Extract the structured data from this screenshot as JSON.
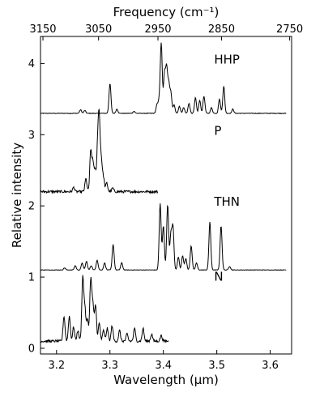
{
  "chart_data": {
    "type": "line",
    "xlabel": "Wavelength (μm)",
    "ylabel": "Relative intensity",
    "top_axis_label": "Frequency (cm⁻¹)",
    "xlim": [
      3.17,
      3.64
    ],
    "ylim": [
      -0.08,
      4.38
    ],
    "x_ticks": [
      3.2,
      3.3,
      3.4,
      3.5,
      3.6
    ],
    "x_tick_labels": [
      "3.2",
      "3.3",
      "3.4",
      "3.5",
      "3.6"
    ],
    "y_ticks": [
      0,
      1,
      2,
      3,
      4
    ],
    "y_tick_labels": [
      "0",
      "1",
      "2",
      "3",
      "4"
    ],
    "top_ticks_cm": [
      3150,
      3050,
      2950,
      2850,
      2750
    ],
    "top_tick_labels": [
      "3150",
      "3050",
      "2950",
      "2850",
      "2750"
    ],
    "grid": false,
    "legend": "none",
    "color": "#000000",
    "series": [
      {
        "name": "HHP",
        "baseline": 3.3,
        "x_range": [
          3.17,
          3.63
        ],
        "label_at": [
          3.495,
          4.0
        ],
        "peaks": [
          [
            3.245,
            0.05
          ],
          [
            3.253,
            0.04
          ],
          [
            3.3,
            0.42
          ],
          [
            3.313,
            0.06
          ],
          [
            3.345,
            0.03
          ],
          [
            3.388,
            0.12
          ],
          [
            3.392,
            0.16
          ],
          [
            3.396,
            0.98
          ],
          [
            3.402,
            0.55
          ],
          [
            3.406,
            0.62
          ],
          [
            3.41,
            0.4
          ],
          [
            3.414,
            0.28
          ],
          [
            3.42,
            0.12
          ],
          [
            3.43,
            0.1
          ],
          [
            3.438,
            0.08
          ],
          [
            3.448,
            0.14
          ],
          [
            3.46,
            0.22
          ],
          [
            3.468,
            0.18
          ],
          [
            3.476,
            0.24
          ],
          [
            3.49,
            0.08
          ],
          [
            3.505,
            0.2
          ],
          [
            3.513,
            0.38
          ],
          [
            3.53,
            0.06
          ]
        ]
      },
      {
        "name": "P",
        "baseline": 2.2,
        "x_range": [
          3.17,
          3.39
        ],
        "label_at": [
          3.495,
          3.0
        ],
        "peaks": [
          [
            3.232,
            0.06
          ],
          [
            3.255,
            0.18
          ],
          [
            3.264,
            0.55
          ],
          [
            3.268,
            0.38
          ],
          [
            3.272,
            0.28
          ],
          [
            3.277,
            0.6
          ],
          [
            3.28,
            0.95
          ],
          [
            3.284,
            0.4
          ],
          [
            3.288,
            0.18
          ],
          [
            3.294,
            0.12
          ],
          [
            3.305,
            0.05
          ]
        ]
      },
      {
        "name": "THN",
        "baseline": 1.1,
        "x_range": [
          3.17,
          3.63
        ],
        "label_at": [
          3.495,
          2.0
        ],
        "peaks": [
          [
            3.215,
            0.03
          ],
          [
            3.235,
            0.06
          ],
          [
            3.248,
            0.1
          ],
          [
            3.256,
            0.12
          ],
          [
            3.265,
            0.06
          ],
          [
            3.276,
            0.14
          ],
          [
            3.29,
            0.1
          ],
          [
            3.306,
            0.36
          ],
          [
            3.322,
            0.1
          ],
          [
            3.394,
            0.93
          ],
          [
            3.4,
            0.62
          ],
          [
            3.408,
            0.92
          ],
          [
            3.414,
            0.5
          ],
          [
            3.418,
            0.6
          ],
          [
            3.428,
            0.18
          ],
          [
            3.436,
            0.2
          ],
          [
            3.442,
            0.16
          ],
          [
            3.452,
            0.34
          ],
          [
            3.462,
            0.1
          ],
          [
            3.487,
            0.68
          ],
          [
            3.508,
            0.62
          ],
          [
            3.524,
            0.05
          ]
        ]
      },
      {
        "name": "N",
        "baseline": 0.1,
        "x_range": [
          3.17,
          3.41
        ],
        "label_at": [
          3.495,
          0.95
        ],
        "peaks": [
          [
            3.214,
            0.35
          ],
          [
            3.224,
            0.35
          ],
          [
            3.232,
            0.2
          ],
          [
            3.24,
            0.15
          ],
          [
            3.249,
            0.88
          ],
          [
            3.253,
            0.45
          ],
          [
            3.258,
            0.3
          ],
          [
            3.264,
            0.85
          ],
          [
            3.268,
            0.5
          ],
          [
            3.273,
            0.5
          ],
          [
            3.28,
            0.25
          ],
          [
            3.288,
            0.15
          ],
          [
            3.295,
            0.18
          ],
          [
            3.304,
            0.22
          ],
          [
            3.318,
            0.15
          ],
          [
            3.332,
            0.1
          ],
          [
            3.346,
            0.18
          ],
          [
            3.362,
            0.18
          ],
          [
            3.378,
            0.1
          ],
          [
            3.396,
            0.08
          ]
        ]
      }
    ]
  }
}
